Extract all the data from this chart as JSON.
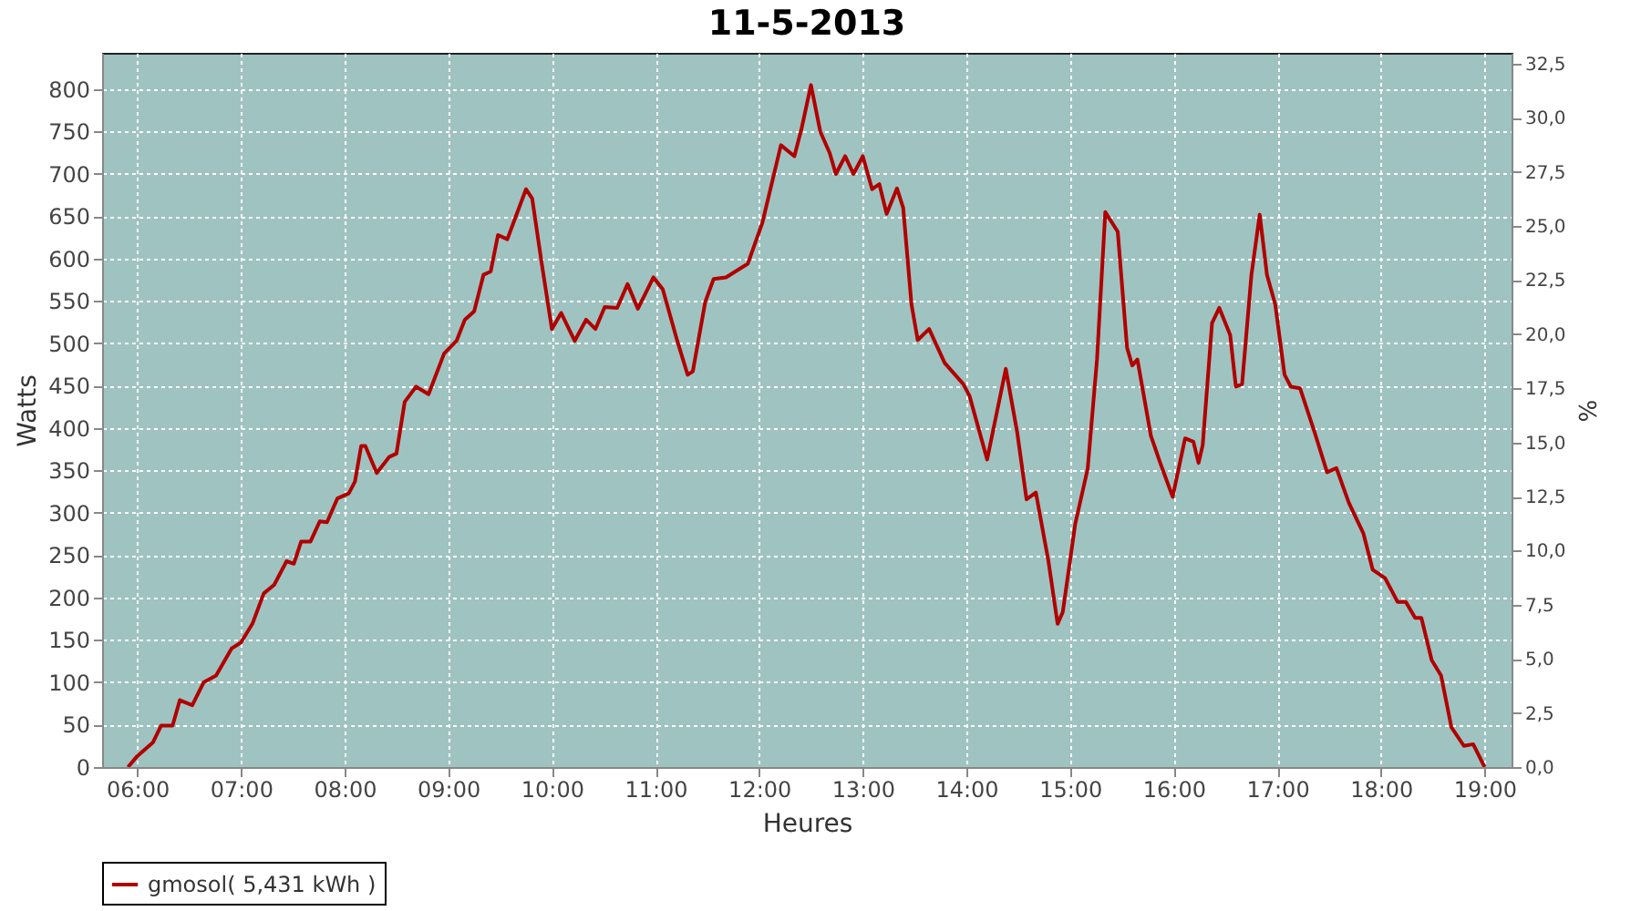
{
  "chart_data": {
    "type": "line",
    "title": "11-5-2013",
    "xlabel": "Heures",
    "ylabel": "Watts",
    "y2label": "%",
    "x": [
      5.91,
      6.0,
      6.15,
      6.23,
      6.34,
      6.41,
      6.53,
      6.64,
      6.76,
      6.91,
      7.0,
      7.11,
      7.22,
      7.32,
      7.44,
      7.51,
      7.58,
      7.67,
      7.76,
      7.83,
      7.93,
      8.04,
      8.1,
      8.16,
      8.2,
      8.31,
      8.43,
      8.5,
      8.58,
      8.69,
      8.81,
      8.96,
      9.08,
      9.16,
      9.25,
      9.34,
      9.41,
      9.48,
      9.57,
      9.75,
      9.81,
      9.9,
      10.0,
      10.09,
      10.22,
      10.33,
      10.42,
      10.51,
      10.63,
      10.73,
      10.83,
      10.98,
      11.07,
      11.21,
      11.31,
      11.36,
      11.48,
      11.56,
      11.68,
      11.89,
      12.03,
      12.21,
      12.34,
      12.41,
      12.5,
      12.59,
      12.68,
      12.74,
      12.83,
      12.91,
      13.0,
      13.09,
      13.16,
      13.23,
      13.33,
      13.39,
      13.47,
      13.53,
      13.64,
      13.79,
      13.97,
      14.03,
      14.2,
      14.38,
      14.49,
      14.58,
      14.67,
      14.79,
      14.88,
      14.93,
      15.05,
      15.17,
      15.26,
      15.34,
      15.46,
      15.55,
      15.6,
      15.65,
      15.78,
      15.87,
      15.99,
      16.11,
      16.19,
      16.24,
      16.28,
      16.37,
      16.44,
      16.545,
      16.6,
      16.66,
      16.75,
      16.83,
      16.9,
      16.98,
      17.07,
      17.13,
      17.22,
      17.36,
      17.48,
      17.57,
      17.69,
      17.83,
      17.92,
      18.04,
      18.16,
      18.24,
      18.33,
      18.39,
      18.49,
      18.58,
      18.68,
      18.8,
      18.89,
      19.0
    ],
    "series": [
      {
        "name": "gmosol( 5,431 kWh )",
        "color": "#b00000",
        "values": [
          0,
          13,
          29,
          49,
          49,
          79,
          73,
          100,
          108,
          140,
          147,
          169,
          205,
          215,
          243,
          240,
          266,
          266,
          290,
          289,
          317,
          323,
          337,
          379,
          379,
          347,
          366,
          370,
          431,
          449,
          440,
          488,
          503,
          528,
          538,
          581,
          585,
          628,
          623,
          682,
          671,
          596,
          517,
          536,
          503,
          528,
          517,
          543,
          542,
          570,
          541,
          578,
          564,
          503,
          463,
          467,
          549,
          576,
          578,
          594,
          642,
          734,
          721,
          754,
          805,
          750,
          725,
          700,
          721,
          700,
          721,
          682,
          688,
          653,
          683,
          660,
          546,
          504,
          517,
          477,
          452,
          438,
          363,
          470,
          395,
          316,
          324,
          244,
          169,
          183,
          287,
          352,
          481,
          655,
          632,
          495,
          474,
          481,
          391,
          359,
          319,
          388,
          384,
          359,
          380,
          524,
          542,
          510,
          449,
          452,
          581,
          652,
          581,
          546,
          463,
          449,
          447,
          395,
          348,
          353,
          312,
          276,
          233,
          223,
          195,
          195,
          176,
          176,
          126,
          108,
          47,
          25,
          27,
          0
        ]
      }
    ],
    "xlim": [
      5.66,
      19.26
    ],
    "xticks": [
      {
        "value": 6,
        "label": "06:00"
      },
      {
        "value": 7,
        "label": "07:00"
      },
      {
        "value": 8,
        "label": "08:00"
      },
      {
        "value": 9,
        "label": "09:00"
      },
      {
        "value": 10,
        "label": "10:00"
      },
      {
        "value": 11,
        "label": "11:00"
      },
      {
        "value": 12,
        "label": "12:00"
      },
      {
        "value": 13,
        "label": "13:00"
      },
      {
        "value": 14,
        "label": "14:00"
      },
      {
        "value": 15,
        "label": "15:00"
      },
      {
        "value": 16,
        "label": "16:00"
      },
      {
        "value": 17,
        "label": "17:00"
      },
      {
        "value": 18,
        "label": "18:00"
      },
      {
        "value": 19,
        "label": "19:00"
      }
    ],
    "ylim": [
      0,
      843
    ],
    "yticks": [
      0,
      50,
      100,
      150,
      200,
      250,
      300,
      350,
      400,
      450,
      500,
      550,
      600,
      650,
      700,
      750,
      800
    ],
    "y2lim": [
      0,
      33
    ],
    "y2ticks": [
      {
        "value": 0,
        "label": "0,0"
      },
      {
        "value": 2.5,
        "label": "2,5"
      },
      {
        "value": 5,
        "label": "5,0"
      },
      {
        "value": 7.5,
        "label": "7,5"
      },
      {
        "value": 10,
        "label": "10,0"
      },
      {
        "value": 12.5,
        "label": "12,5"
      },
      {
        "value": 15,
        "label": "15,0"
      },
      {
        "value": 17.5,
        "label": "17,5"
      },
      {
        "value": 20,
        "label": "20,0"
      },
      {
        "value": 22.5,
        "label": "22,5"
      },
      {
        "value": 25,
        "label": "25,0"
      },
      {
        "value": 27.5,
        "label": "27,5"
      },
      {
        "value": 30,
        "label": "30,0"
      },
      {
        "value": 32.5,
        "label": "32,5"
      }
    ],
    "grid": true,
    "legend": "bottom",
    "marker": "none",
    "line_style": "solid"
  }
}
